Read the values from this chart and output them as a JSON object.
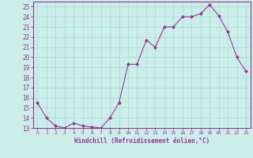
{
  "x": [
    0,
    1,
    2,
    3,
    4,
    5,
    6,
    7,
    8,
    9,
    10,
    11,
    12,
    13,
    14,
    15,
    16,
    17,
    18,
    19,
    20,
    21,
    22,
    23
  ],
  "y": [
    15.5,
    14.0,
    13.2,
    13.0,
    13.5,
    13.2,
    13.1,
    13.0,
    14.0,
    15.5,
    19.3,
    19.3,
    21.7,
    21.0,
    23.0,
    23.0,
    24.0,
    24.0,
    24.3,
    25.2,
    24.1,
    22.5,
    20.0,
    18.6
  ],
  "line_color": "#993399",
  "marker": "D",
  "marker_size": 2,
  "bg_color": "#cceee8",
  "grid_color": "#aadddd",
  "xlabel": "Windchill (Refroidissement éolien,°C)",
  "ylabel": "",
  "ylim": [
    13,
    25.5
  ],
  "xlim": [
    -0.5,
    23.5
  ],
  "yticks": [
    13,
    14,
    15,
    16,
    17,
    18,
    19,
    20,
    21,
    22,
    23,
    24,
    25
  ],
  "xticks": [
    0,
    1,
    2,
    3,
    4,
    5,
    6,
    7,
    8,
    9,
    10,
    11,
    12,
    13,
    14,
    15,
    16,
    17,
    18,
    19,
    20,
    21,
    22,
    23
  ],
  "axis_color": "#993399",
  "tick_color": "#993399",
  "label_color": "#993399"
}
